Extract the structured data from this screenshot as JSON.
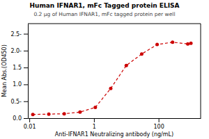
{
  "chart_data": {
    "type": "line",
    "title": "Human IFNAR1, mFc Tagged protein ELISA",
    "subtitle": "0.2 μg of Human IFNAR1, mFc tagged protein per well",
    "xlabel": "Anti-IFNAR1 Neutralizing antibody (ng/mL)",
    "ylabel": "Mean Abs.(OD450)",
    "x": [
      0.0128,
      0.04,
      0.12,
      0.37,
      1.1,
      3.3,
      10.0,
      30.0,
      90.0,
      270.0,
      800.0,
      1000.0
    ],
    "values": [
      0.11,
      0.12,
      0.13,
      0.18,
      0.32,
      0.88,
      1.56,
      1.9,
      2.18,
      2.25,
      2.2,
      2.22
    ],
    "color": "#cc0000",
    "marker": "o",
    "line_style": "dashed",
    "log": "x",
    "grid": false,
    "xlim": [
      0.009,
      2000
    ],
    "ylim": [
      0.0,
      2.8
    ],
    "xticks": [
      0.01,
      1,
      100
    ],
    "yticks": [
      {
        "value": 0.0,
        "label": "0.0"
      },
      {
        "value": 0.5,
        "label": "0.5-"
      },
      {
        "value": 1.0,
        "label": "1.0"
      },
      {
        "value": 1.5,
        "label": "1.5"
      },
      {
        "value": 2.0,
        "label": "2.0-"
      },
      {
        "value": 2.5,
        "label": "2.5-"
      }
    ]
  }
}
